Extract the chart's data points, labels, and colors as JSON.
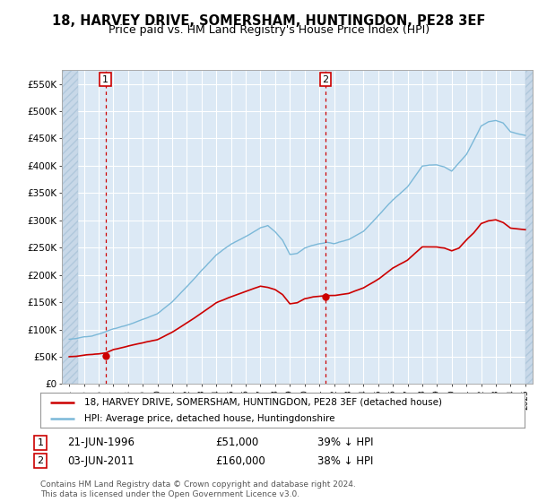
{
  "title": "18, HARVEY DRIVE, SOMERSHAM, HUNTINGDON, PE28 3EF",
  "subtitle": "Price paid vs. HM Land Registry's House Price Index (HPI)",
  "title_fontsize": 10.5,
  "subtitle_fontsize": 9,
  "bg_color": "#dce9f5",
  "fig_bg_color": "#ffffff",
  "grid_color": "#ffffff",
  "hpi_color": "#7bb8d8",
  "price_color": "#cc0000",
  "marker_color": "#cc0000",
  "dashed_color": "#cc0000",
  "hatch_color": "#c8d8e8",
  "ylim": [
    0,
    575000
  ],
  "xlim_start": 1993.5,
  "xlim_end": 2025.5,
  "data_start": 1994.5,
  "data_end": 2025.0,
  "sale1_year": 1996.47,
  "sale1_price": 51000,
  "sale2_year": 2011.42,
  "sale2_price": 160000,
  "legend_label_price": "18, HARVEY DRIVE, SOMERSHAM, HUNTINGDON, PE28 3EF (detached house)",
  "legend_label_hpi": "HPI: Average price, detached house, Huntingdonshire",
  "note1_label": "1",
  "note1_date": "21-JUN-1996",
  "note1_price": "£51,000",
  "note1_pct": "39% ↓ HPI",
  "note2_label": "2",
  "note2_date": "03-JUN-2011",
  "note2_price": "£160,000",
  "note2_pct": "38% ↓ HPI",
  "footer": "Contains HM Land Registry data © Crown copyright and database right 2024.\nThis data is licensed under the Open Government Licence v3.0.",
  "yticks": [
    0,
    50000,
    100000,
    150000,
    200000,
    250000,
    300000,
    350000,
    400000,
    450000,
    500000,
    550000
  ],
  "ytick_labels": [
    "£0",
    "£50K",
    "£100K",
    "£150K",
    "£200K",
    "£250K",
    "£300K",
    "£350K",
    "£400K",
    "£450K",
    "£500K",
    "£550K"
  ],
  "xticks": [
    1994,
    1995,
    1996,
    1997,
    1998,
    1999,
    2000,
    2001,
    2002,
    2003,
    2004,
    2005,
    2006,
    2007,
    2008,
    2009,
    2010,
    2011,
    2012,
    2013,
    2014,
    2015,
    2016,
    2017,
    2018,
    2019,
    2020,
    2021,
    2022,
    2023,
    2024,
    2025
  ]
}
